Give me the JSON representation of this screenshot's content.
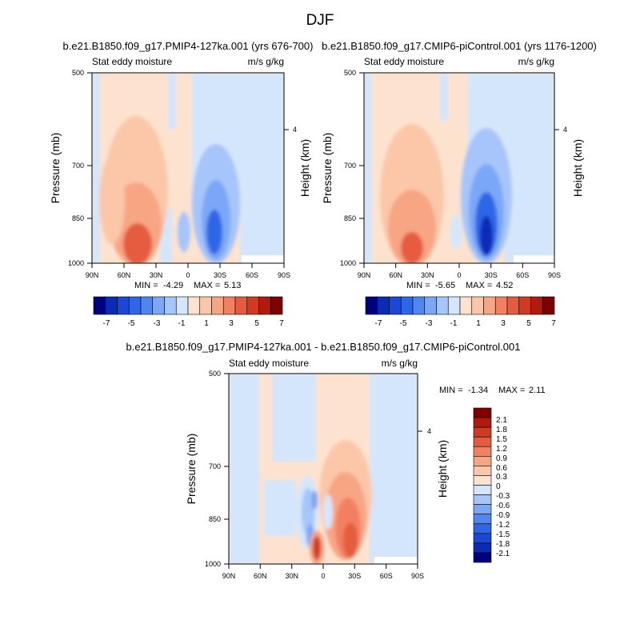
{
  "main_title": "DJF",
  "palette_colors": {
    "neg": [
      "#00007f",
      "#0a2ab8",
      "#1b47d6",
      "#2e66e8",
      "#4f87f2",
      "#7aa7f7",
      "#a6c5fa",
      "#d4e6fc"
    ],
    "pos": [
      "#fde3cf",
      "#fbc7a8",
      "#f8a584",
      "#f28061",
      "#e65b3f",
      "#d13a22",
      "#b31a0f",
      "#7f0000"
    ]
  },
  "chart_data": [
    {
      "type": "heatmap",
      "title": "b.e21.B1850.f09_g17.PMIP4-127ka.001 (yrs 676-700)",
      "left_label": "Stat eddy moisture",
      "right_label": "m/s g/kg",
      "ylabel": "Pressure (mb)",
      "y2label": "Height (km)",
      "x_ticks": [
        "90N",
        "60N",
        "30N",
        "0",
        "30S",
        "60S",
        "90S"
      ],
      "y_ticks": [
        "500",
        "700",
        "850",
        "1000"
      ],
      "y2_ticks": [
        "4"
      ],
      "min_label": "MIN =",
      "min_value": "-4.29",
      "max_label": "MAX =",
      "max_value": "5.13",
      "colorbar_labels": [
        "-7",
        "-5",
        "-3",
        "-1",
        "1",
        "3",
        "5",
        "7"
      ],
      "ylim": [
        1000,
        500
      ],
      "xlim": [
        90,
        -90
      ]
    },
    {
      "type": "heatmap",
      "title": "b.e21.B1850.f09_g17.CMIP6-piControl.001 (yrs 1176-1200)",
      "left_label": "Stat eddy moisture",
      "right_label": "m/s g/kg",
      "ylabel": "Pressure (mb)",
      "y2label": "Height (km)",
      "x_ticks": [
        "90N",
        "60N",
        "30N",
        "0",
        "30S",
        "60S",
        "90S"
      ],
      "y_ticks": [
        "500",
        "700",
        "850",
        "1000"
      ],
      "y2_ticks": [
        "4"
      ],
      "min_label": "MIN =",
      "min_value": "-5.65",
      "max_label": "MAX =",
      "max_value": "4.52",
      "colorbar_labels": [
        "-7",
        "-5",
        "-3",
        "-1",
        "1",
        "3",
        "5",
        "7"
      ],
      "ylim": [
        1000,
        500
      ],
      "xlim": [
        90,
        -90
      ]
    },
    {
      "type": "heatmap",
      "title": "b.e21.B1850.f09_g17.PMIP4-127ka.001 - b.e21.B1850.f09_g17.CMIP6-piControl.001",
      "left_label": "Stat eddy moisture",
      "right_label": "m/s g/kg",
      "ylabel": "Pressure (mb)",
      "y2label": "Height (km)",
      "x_ticks": [
        "90N",
        "60N",
        "30N",
        "0",
        "30S",
        "60S",
        "90S"
      ],
      "y_ticks": [
        "500",
        "700",
        "850",
        "1000"
      ],
      "y2_ticks": [
        "4"
      ],
      "min_label": "MIN =",
      "min_value": "-1.34",
      "max_label": "MAX =",
      "max_value": "2.11",
      "colorbar_labels": [
        "2.1",
        "1.8",
        "1.5",
        "1.2",
        "0.9",
        "0.6",
        "0.3",
        "0",
        "-0.3",
        "-0.6",
        "-0.9",
        "-1.2",
        "-1.5",
        "-1.8",
        "-2.1"
      ],
      "ylim": [
        1000,
        500
      ],
      "xlim": [
        90,
        -90
      ]
    }
  ]
}
